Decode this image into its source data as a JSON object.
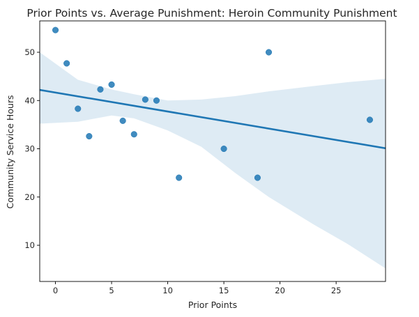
{
  "chart_data": {
    "type": "scatter",
    "title": "Prior Points vs. Average Punishment: Heroin Community Punishment",
    "xlabel": "Prior Points",
    "ylabel": "Community Service Hours",
    "xlim": [
      -1.4,
      29.4
    ],
    "ylim": [
      2.5,
      56.5
    ],
    "x_ticks": [
      0,
      5,
      10,
      15,
      20,
      25
    ],
    "y_ticks": [
      10,
      20,
      30,
      40,
      50
    ],
    "grid": false,
    "points": [
      {
        "x": 0,
        "y": 54.6
      },
      {
        "x": 1,
        "y": 47.7
      },
      {
        "x": 2,
        "y": 38.3
      },
      {
        "x": 3,
        "y": 32.6
      },
      {
        "x": 4,
        "y": 42.3
      },
      {
        "x": 5,
        "y": 43.3
      },
      {
        "x": 6,
        "y": 35.8
      },
      {
        "x": 7,
        "y": 33.0
      },
      {
        "x": 8,
        "y": 40.2
      },
      {
        "x": 9,
        "y": 40.0
      },
      {
        "x": 11,
        "y": 24.0
      },
      {
        "x": 15,
        "y": 30.0
      },
      {
        "x": 18,
        "y": 24.0
      },
      {
        "x": 19,
        "y": 50.0
      },
      {
        "x": 28,
        "y": 36.0
      }
    ],
    "regression": {
      "line": [
        [
          -1.4,
          42.2
        ],
        [
          29.4,
          30.1
        ]
      ],
      "ci_upper": [
        [
          -1.4,
          50.0
        ],
        [
          2,
          44.3
        ],
        [
          5,
          42.3
        ],
        [
          7,
          41.3
        ],
        [
          10,
          40.0
        ],
        [
          13,
          40.2
        ],
        [
          16,
          40.9
        ],
        [
          19,
          41.9
        ],
        [
          23,
          43.0
        ],
        [
          26,
          43.8
        ],
        [
          29.4,
          44.5
        ]
      ],
      "ci_lower": [
        [
          -1.4,
          35.2
        ],
        [
          2,
          35.6
        ],
        [
          5,
          36.9
        ],
        [
          7,
          36.3
        ],
        [
          10,
          33.8
        ],
        [
          13,
          30.4
        ],
        [
          16,
          25.0
        ],
        [
          19,
          20.0
        ],
        [
          23,
          14.3
        ],
        [
          26,
          10.3
        ],
        [
          29.4,
          5.2
        ]
      ]
    },
    "colors": {
      "points": "#1f77b4",
      "line": "#1f77b4",
      "ci_band": "#1f77b4"
    }
  }
}
